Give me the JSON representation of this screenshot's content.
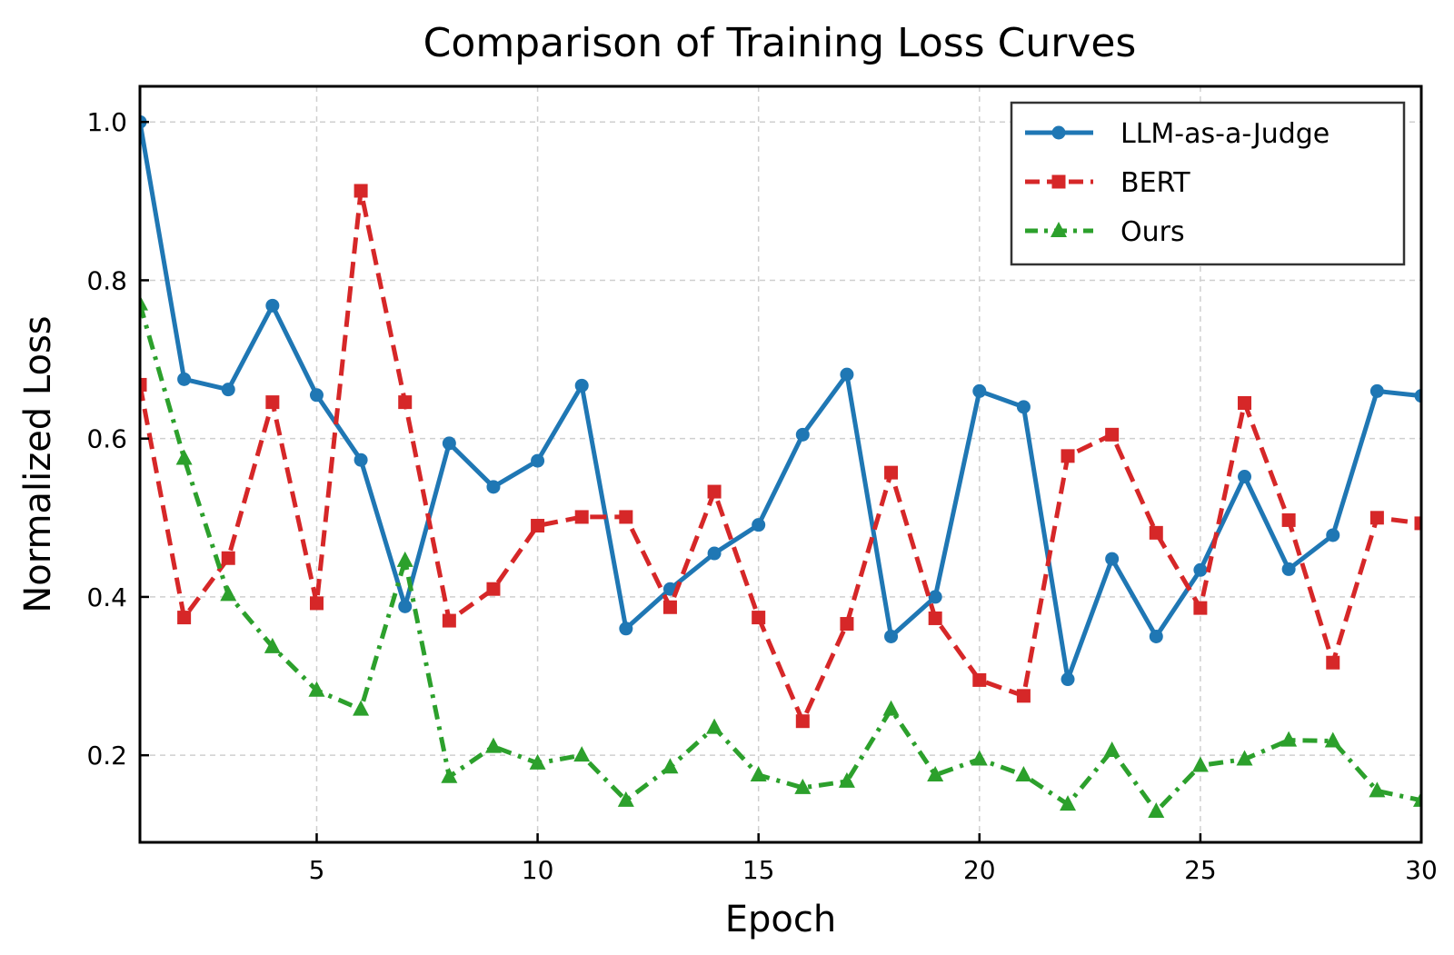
{
  "chart_data": {
    "type": "line",
    "title": "Comparison of Training Loss Curves",
    "xlabel": "Epoch",
    "ylabel": "Normalized Loss",
    "xlim": [
      1,
      30
    ],
    "ylim": [
      0.09,
      1.045
    ],
    "xticks": [
      5,
      10,
      15,
      20,
      25,
      30
    ],
    "yticks": [
      0.2,
      0.4,
      0.6,
      0.8,
      1.0
    ],
    "xtick_labels": [
      "5",
      "10",
      "15",
      "20",
      "25",
      "30"
    ],
    "ytick_labels": [
      "0.2",
      "0.4",
      "0.6",
      "0.8",
      "1.0"
    ],
    "grid": true,
    "legend_position": "top-right",
    "x": [
      1,
      2,
      3,
      4,
      5,
      6,
      7,
      8,
      9,
      10,
      11,
      12,
      13,
      14,
      15,
      16,
      17,
      18,
      19,
      20,
      21,
      22,
      23,
      24,
      25,
      26,
      27,
      28,
      29,
      30
    ],
    "series": [
      {
        "name": "LLM-as-a-Judge",
        "color": "#1f77b4",
        "marker": "circle",
        "linestyle": "solid",
        "values": [
          1.0,
          0.675,
          0.662,
          0.768,
          0.655,
          0.573,
          0.388,
          0.594,
          0.539,
          0.572,
          0.667,
          0.36,
          0.41,
          0.455,
          0.491,
          0.605,
          0.681,
          0.35,
          0.4,
          0.66,
          0.64,
          0.296,
          0.448,
          0.35,
          0.434,
          0.552,
          0.435,
          0.478,
          0.66,
          0.654
        ]
      },
      {
        "name": "BERT",
        "color": "#d62728",
        "marker": "square",
        "linestyle": "dashed",
        "values": [
          0.668,
          0.374,
          0.449,
          0.646,
          0.392,
          0.913,
          0.646,
          0.37,
          0.41,
          0.49,
          0.501,
          0.501,
          0.387,
          0.533,
          0.374,
          0.243,
          0.366,
          0.557,
          0.373,
          0.295,
          0.275,
          0.578,
          0.605,
          0.481,
          0.386,
          0.645,
          0.497,
          0.317,
          0.5,
          0.493
        ]
      },
      {
        "name": "Ours",
        "color": "#2ca02c",
        "marker": "triangle",
        "linestyle": "dashdot",
        "values": [
          0.77,
          0.575,
          0.403,
          0.337,
          0.282,
          0.258,
          0.446,
          0.173,
          0.211,
          0.19,
          0.2,
          0.143,
          0.185,
          0.235,
          0.175,
          0.159,
          0.167,
          0.258,
          0.175,
          0.195,
          0.175,
          0.138,
          0.206,
          0.129,
          0.187,
          0.195,
          0.219,
          0.218,
          0.155,
          0.143
        ]
      }
    ]
  }
}
